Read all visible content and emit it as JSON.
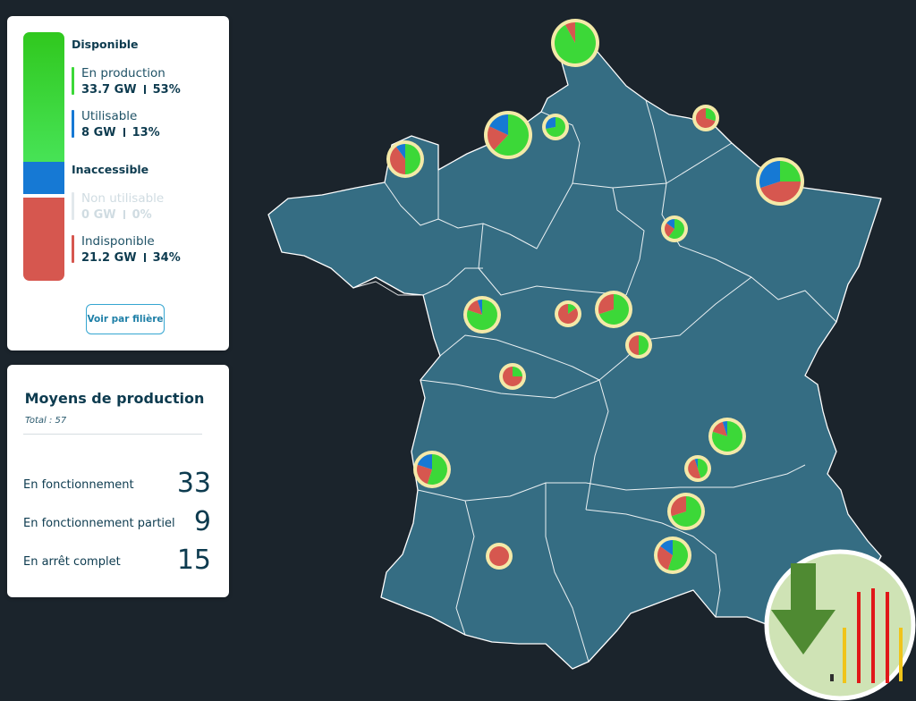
{
  "legend": {
    "available_title": "Disponible",
    "inaccessible_title": "Inaccessible",
    "items": [
      {
        "name": "En production",
        "gw": "33.7 GW",
        "pct": "53%",
        "color": "#3cd838"
      },
      {
        "name": "Utilisable",
        "gw": "8 GW",
        "pct": "13%",
        "color": "#1679d4"
      },
      {
        "name": "Non utilisable",
        "gw": "0 GW",
        "pct": "0%",
        "color": "#e2e8ec"
      },
      {
        "name": "Indisponible",
        "gw": "21.2 GW",
        "pct": "34%",
        "color": "#d6574f"
      }
    ],
    "button_label": "Voir par filière"
  },
  "stats": {
    "title": "Moyens de production",
    "total": "Total : 57",
    "rows": [
      {
        "label": "En fonctionnement",
        "value": "33"
      },
      {
        "label": "En fonctionnement partiel",
        "value": "9"
      },
      {
        "label": "En arrêt complet",
        "value": "15"
      }
    ]
  },
  "map": {
    "land_color": "#356d83",
    "ring_color": "#f4e9a8",
    "plants": [
      {
        "id": "gravelines",
        "green": 92,
        "blue": 0,
        "red": 8
      },
      {
        "id": "penly",
        "green": 72,
        "blue": 28,
        "red": 0
      },
      {
        "id": "paluel",
        "green": 62,
        "blue": 18,
        "red": 20
      },
      {
        "id": "flamanville",
        "green": 50,
        "blue": 10,
        "red": 40
      },
      {
        "id": "chooz",
        "green": 30,
        "blue": 0,
        "red": 70
      },
      {
        "id": "cattenom",
        "green": 25,
        "blue": 30,
        "red": 45
      },
      {
        "id": "nogent",
        "green": 60,
        "blue": 15,
        "red": 25
      },
      {
        "id": "chinon",
        "green": 80,
        "blue": 5,
        "red": 15
      },
      {
        "id": "st-laurent",
        "green": 15,
        "blue": 0,
        "red": 85
      },
      {
        "id": "dampierre",
        "green": 70,
        "blue": 0,
        "red": 30
      },
      {
        "id": "belleville",
        "green": 50,
        "blue": 0,
        "red": 50
      },
      {
        "id": "civaux",
        "green": 25,
        "blue": 0,
        "red": 75
      },
      {
        "id": "blayais",
        "green": 55,
        "blue": 20,
        "red": 25
      },
      {
        "id": "bugey",
        "green": 80,
        "blue": 5,
        "red": 15
      },
      {
        "id": "st-alban",
        "green": 45,
        "blue": 5,
        "red": 50
      },
      {
        "id": "cruas",
        "green": 70,
        "blue": 0,
        "red": 30
      },
      {
        "id": "tricastin",
        "green": 55,
        "blue": 15,
        "red": 30
      },
      {
        "id": "golfech",
        "green": 0,
        "blue": 0,
        "red": 100
      }
    ]
  },
  "download": {
    "icon": "download-icon"
  }
}
